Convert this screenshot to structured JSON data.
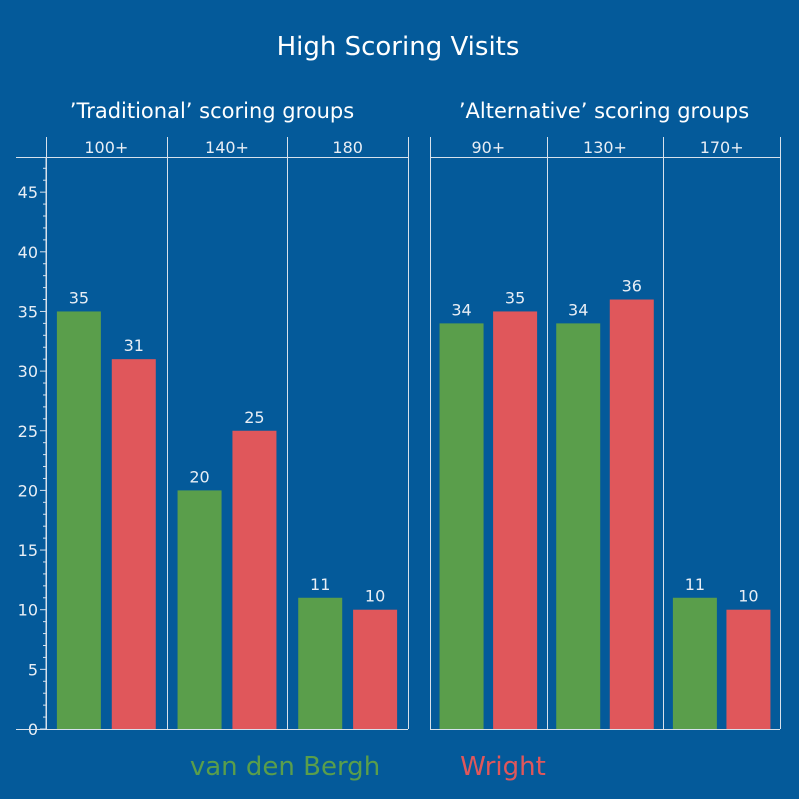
{
  "chart_data": {
    "type": "bar",
    "title": "High Scoring Visits",
    "ylim": [
      0,
      47
    ],
    "yticks": [
      0,
      5,
      10,
      15,
      20,
      25,
      30,
      35,
      40,
      45
    ],
    "series_names": [
      "van den Bergh",
      "Wright"
    ],
    "colors": {
      "van den Bergh": "#5a9e4b",
      "Wright": "#e0575b",
      "background": "#045a9a"
    },
    "panels": [
      {
        "title": "’Traditional’ scoring groups",
        "categories": [
          "100+",
          "140+",
          "180"
        ],
        "series": [
          {
            "name": "van den Bergh",
            "values": [
              35,
              20,
              11
            ]
          },
          {
            "name": "Wright",
            "values": [
              31,
              25,
              10
            ]
          }
        ]
      },
      {
        "title": "’Alternative’ scoring groups",
        "categories": [
          "90+",
          "130+",
          "170+"
        ],
        "series": [
          {
            "name": "van den Bergh",
            "values": [
              34,
              34,
              11
            ]
          },
          {
            "name": "Wright",
            "values": [
              35,
              36,
              10
            ]
          }
        ]
      }
    ],
    "legend": [
      "van den Bergh",
      "Wright"
    ]
  }
}
